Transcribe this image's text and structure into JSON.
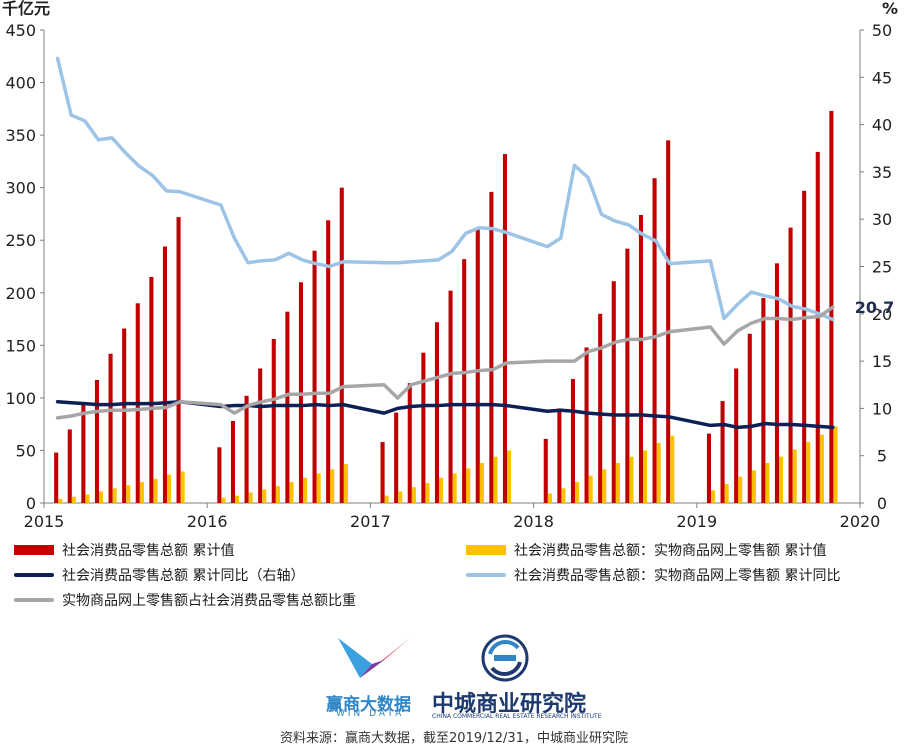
{
  "chart_data": {
    "type": "bar",
    "y_left_unit": "千亿元",
    "y_right_unit": "%",
    "ylim_left": [
      0,
      450
    ],
    "ylim_right": [
      0,
      50
    ],
    "yticks_left": [
      "0",
      "50",
      "100",
      "150",
      "200",
      "250",
      "300",
      "350",
      "400",
      "450"
    ],
    "yticks_right": [
      "0",
      "5",
      "10",
      "15",
      "20",
      "25",
      "30",
      "35",
      "40",
      "45",
      "50"
    ],
    "x_tick_labels": [
      "2015",
      "2016",
      "2017",
      "2018",
      "2019",
      "2020"
    ],
    "x_range": [
      "2015-01",
      "2020-01"
    ],
    "grid": false,
    "dates": [
      "2015-02",
      "2015-03",
      "2015-04",
      "2015-05",
      "2015-06",
      "2015-07",
      "2015-08",
      "2015-09",
      "2015-10",
      "2015-11",
      "2016-02",
      "2016-03",
      "2016-04",
      "2016-05",
      "2016-06",
      "2016-07",
      "2016-08",
      "2016-09",
      "2016-10",
      "2016-11",
      "2017-02",
      "2017-03",
      "2017-04",
      "2017-05",
      "2017-06",
      "2017-07",
      "2017-08",
      "2017-09",
      "2017-10",
      "2017-11",
      "2018-02",
      "2018-03",
      "2018-04",
      "2018-05",
      "2018-06",
      "2018-07",
      "2018-08",
      "2018-09",
      "2018-10",
      "2018-11",
      "2019-02",
      "2019-03",
      "2019-04",
      "2019-05",
      "2019-06",
      "2019-07",
      "2019-08",
      "2019-09",
      "2019-10",
      "2019-11"
    ],
    "series": [
      {
        "name": "社会消费品零售总额 累计值",
        "type": "bar",
        "axis": "left",
        "color": "#c00000",
        "values": [
          48,
          70,
          95,
          117,
          142,
          166,
          190,
          215,
          244,
          272,
          53,
          78,
          102,
          128,
          156,
          182,
          210,
          240,
          269,
          300,
          58,
          86,
          114,
          143,
          172,
          202,
          232,
          262,
          296,
          332,
          61,
          90,
          118,
          148,
          180,
          211,
          242,
          274,
          309,
          345,
          66,
          97,
          128,
          161,
          195,
          228,
          262,
          297,
          334,
          373
        ]
      },
      {
        "name": "社会消费品零售总额：实物商品网上零售额 累计值",
        "type": "bar",
        "axis": "left",
        "color": "#ffc000",
        "values": [
          4,
          6,
          8,
          11,
          14,
          17,
          20,
          23,
          27,
          30,
          5,
          7,
          10,
          13,
          16,
          20,
          24,
          28,
          32,
          37,
          7,
          11,
          15,
          19,
          24,
          28,
          33,
          38,
          44,
          50,
          9,
          14,
          20,
          26,
          32,
          38,
          44,
          50,
          57,
          64,
          12,
          18,
          25,
          31,
          38,
          44,
          51,
          58,
          65,
          73
        ]
      },
      {
        "name": "社会消费品零售总额 累计同比（右轴）",
        "type": "line",
        "axis": "right",
        "color": "#0d1f54",
        "values": [
          10.7,
          10.6,
          10.5,
          10.4,
          10.4,
          10.5,
          10.5,
          10.5,
          10.6,
          10.7,
          10.2,
          10.3,
          10.3,
          10.2,
          10.3,
          10.3,
          10.3,
          10.4,
          10.3,
          10.4,
          9.5,
          10.0,
          10.2,
          10.3,
          10.3,
          10.4,
          10.4,
          10.4,
          10.4,
          10.3,
          9.7,
          9.8,
          9.7,
          9.5,
          9.4,
          9.3,
          9.3,
          9.3,
          9.2,
          9.1,
          8.2,
          8.3,
          8.0,
          8.1,
          8.4,
          8.3,
          8.3,
          8.2,
          8.1,
          8.0
        ]
      },
      {
        "name": "社会消费品零售总额：实物商品网上零售额 累计同比",
        "type": "line",
        "axis": "right",
        "color": "#9dc3e6",
        "values": [
          47.0,
          41.0,
          40.4,
          38.4,
          38.6,
          37.0,
          35.6,
          34.6,
          33.0,
          32.9,
          31.5,
          28.0,
          25.4,
          25.6,
          25.7,
          26.4,
          25.7,
          25.3,
          25.0,
          25.5,
          25.4,
          25.4,
          25.5,
          25.6,
          25.7,
          26.6,
          28.5,
          29.1,
          29.0,
          28.6,
          27.1,
          28.0,
          35.7,
          34.4,
          30.5,
          29.8,
          29.4,
          28.4,
          27.7,
          25.3,
          25.6,
          19.5,
          21.0,
          22.3,
          21.9,
          21.6,
          20.8,
          20.5,
          20.0,
          19.4
        ]
      },
      {
        "name": "实物商品网上零售额占社会消费品零售总额比重",
        "type": "line",
        "axis": "right",
        "color": "#a6a6a6",
        "values": [
          9.0,
          9.2,
          9.5,
          9.7,
          9.8,
          9.8,
          9.9,
          10.0,
          10.1,
          10.7,
          10.4,
          9.5,
          10.3,
          10.7,
          11.0,
          11.5,
          11.5,
          11.6,
          11.6,
          12.3,
          12.5,
          11.1,
          12.5,
          12.9,
          13.3,
          13.7,
          13.8,
          14.0,
          14.1,
          14.8,
          15.0,
          15.0,
          15.0,
          16.0,
          16.4,
          17.0,
          17.3,
          17.3,
          17.6,
          18.1,
          18.6,
          16.8,
          18.2,
          19.0,
          19.5,
          19.5,
          19.4,
          19.6,
          19.7,
          20.7
        ]
      }
    ],
    "annotation": {
      "text": "20.7",
      "series": "实物商品网上零售额占社会消费品零售总额比重",
      "date": "2019-11",
      "value": 20.7
    }
  },
  "legend": [
    {
      "label": "社会消费品零售总额 累计值",
      "kind": "bar",
      "color": "#c00000"
    },
    {
      "label": "社会消费品零售总额：实物商品网上零售额 累计值",
      "kind": "bar",
      "color": "#ffc000"
    },
    {
      "label": "社会消费品零售总额 累计同比（右轴）",
      "kind": "line",
      "color": "#0d1f54"
    },
    {
      "label": "社会消费品零售总额：实物商品网上零售额 累计同比",
      "kind": "line",
      "color": "#9dc3e6"
    },
    {
      "label": "实物商品网上零售额占社会消费品零售总额比重",
      "kind": "line",
      "color": "#a6a6a6"
    }
  ],
  "logos": {
    "wind_name": "赢商大数据",
    "wind_sub": "WIN DATA",
    "zc_name": "中城商业研究院",
    "zc_sub": "CHINA COMMERCIAL REAL ESTATE RESEARCH INSTITUTE"
  },
  "source": "资料来源：赢商大数据，截至2019/12/31，中城商业研究院"
}
